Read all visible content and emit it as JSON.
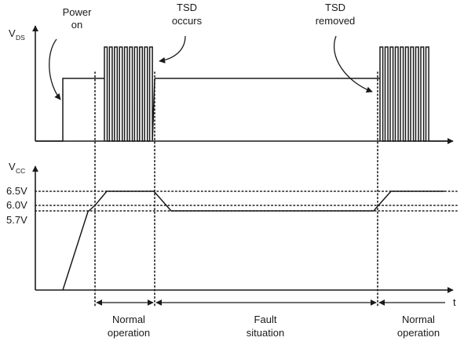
{
  "vds_axis": {
    "symbol": "V",
    "subscript": "DS"
  },
  "vcc_axis": {
    "symbol": "V",
    "subscript": "CC"
  },
  "time_axis_label": "t",
  "voltage_levels": [
    "6.5V",
    "6.0V",
    "5.7V"
  ],
  "events": {
    "power_on": [
      "Power",
      "on"
    ],
    "tsd_occurs": [
      "TSD",
      "occurs"
    ],
    "tsd_removed": [
      "TSD",
      "removed"
    ]
  },
  "phases": {
    "normal_1": [
      "Normal",
      "operation"
    ],
    "fault": [
      "Fault",
      "situation"
    ],
    "normal_2": [
      "Normal",
      "operation"
    ]
  }
}
